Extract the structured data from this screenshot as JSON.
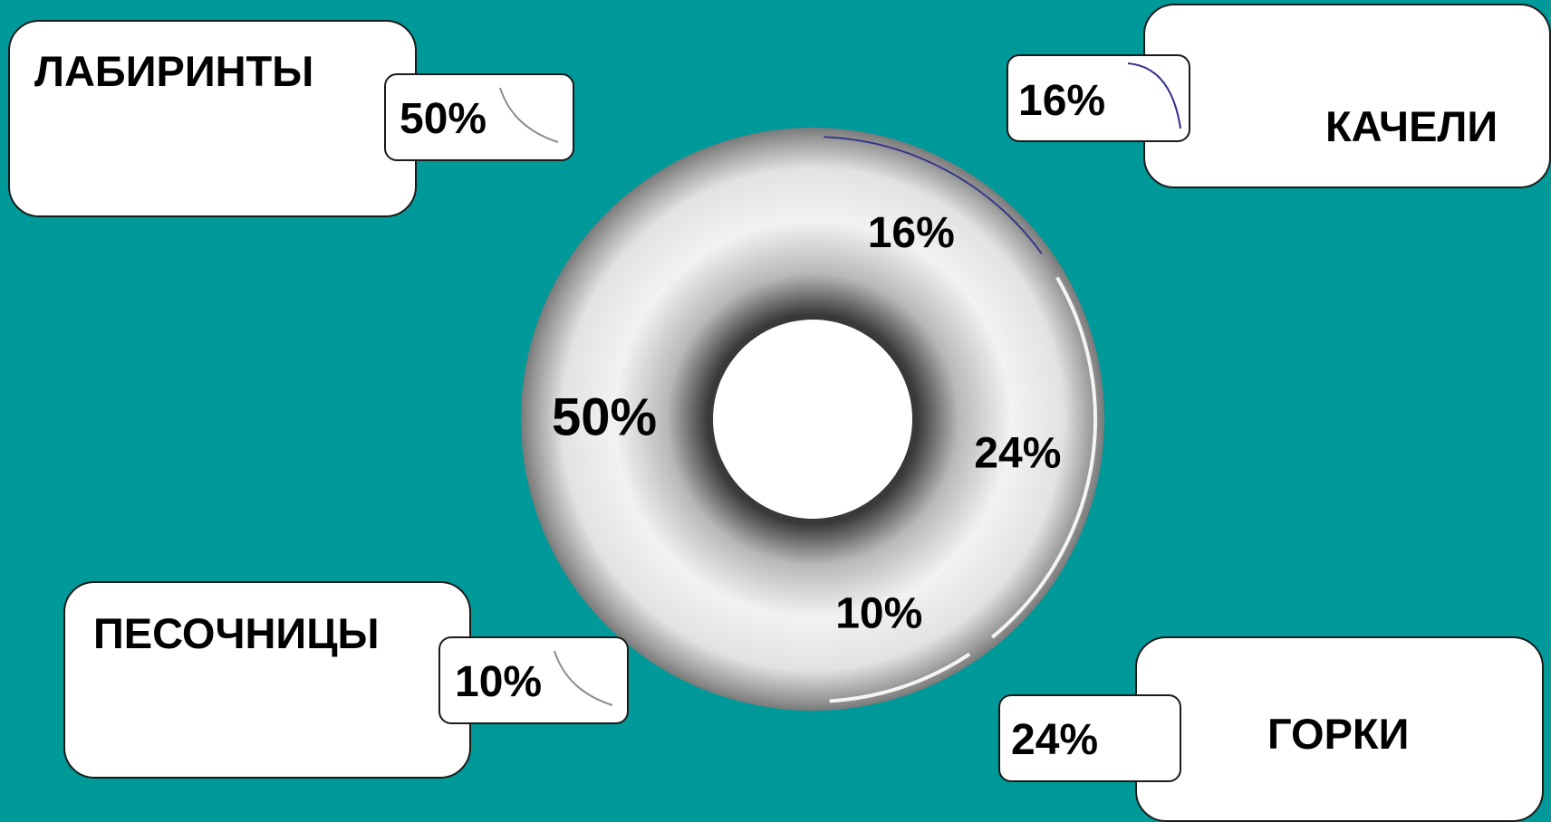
{
  "chart_data": {
    "type": "pie",
    "style": "donut",
    "slices": [
      {
        "label": "КАЧЕЛИ",
        "value": 16,
        "value_label": "16%"
      },
      {
        "label": "ГОРКИ",
        "value": 24,
        "value_label": "24%"
      },
      {
        "label": "ПЕСОЧНИЦЫ",
        "value": 10,
        "value_label": "10%"
      },
      {
        "label": "ЛАБИРИНТЫ",
        "value": 50,
        "value_label": "50%"
      }
    ],
    "legend": "callout boxes at the four corners"
  },
  "colors": {
    "background": "#009999",
    "box_fill": "#ffffff",
    "ring_light": "#f2f2f2",
    "ring_dark": "#3a3a3a",
    "accent_line": "#2e2e8a"
  }
}
